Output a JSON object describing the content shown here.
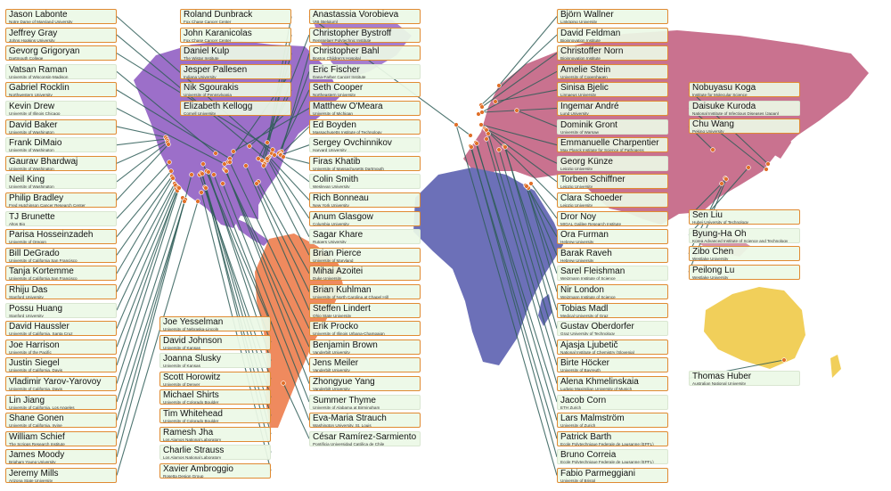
{
  "colors": {
    "north_america": "#9c6fc9",
    "south_america": "#ef8a5e",
    "europe_asia": "#c9728f",
    "africa": "#6c70b8",
    "australia": "#f1cf5a",
    "connector": "#2f5d58",
    "marker": "#e0702a",
    "box_border": "#e08a32",
    "box_fill": "#ecf8e6"
  },
  "scientists": [
    {
      "name": "Jason Labonte",
      "affiliation": "Notre Dame of Maryland University"
    },
    {
      "name": "Jeffrey Gray",
      "affiliation": "Johns Hopkins University"
    },
    {
      "name": "Gevorg Grigoryan",
      "affiliation": "Dartmouth College"
    },
    {
      "name": "Vatsan Raman",
      "affiliation": "University of Wisconsin-Madison"
    },
    {
      "name": "Gabriel Rocklin",
      "affiliation": "Northwestern University"
    },
    {
      "name": "Kevin Drew",
      "affiliation": "University of Illinois Chicago"
    },
    {
      "name": "David Baker",
      "affiliation": "University of Washington"
    },
    {
      "name": "Frank DiMaio",
      "affiliation": "University of Washington"
    },
    {
      "name": "Gaurav Bhardwaj",
      "affiliation": "University of Washington"
    },
    {
      "name": "Neil King",
      "affiliation": "University of Washington"
    },
    {
      "name": "Philip Bradley",
      "affiliation": "Fred Hutchinson Cancer Research Center"
    },
    {
      "name": "TJ Brunette",
      "affiliation": "Altos Bio"
    },
    {
      "name": "Parisa Hosseinzadeh",
      "affiliation": "University of Oregon"
    },
    {
      "name": "Bill DeGrado",
      "affiliation": "University of California San Francisco"
    },
    {
      "name": "Tanja Kortemme",
      "affiliation": "University of California San Francisco"
    },
    {
      "name": "Rhiju Das",
      "affiliation": "Stanford University"
    },
    {
      "name": "Possu Huang",
      "affiliation": "Stanford University"
    },
    {
      "name": "David Haussler",
      "affiliation": "University of California, Santa Cruz"
    },
    {
      "name": "Joe Harrison",
      "affiliation": "University of the Pacific"
    },
    {
      "name": "Justin Siegel",
      "affiliation": "University of California, Davis"
    },
    {
      "name": "Vladimir Yarov-Yarovoy",
      "affiliation": "University of California, Davis"
    },
    {
      "name": "Lin Jiang",
      "affiliation": "University of California, Los Angeles"
    },
    {
      "name": "Shane Gonen",
      "affiliation": "University of California, Irvine"
    },
    {
      "name": "William Schief",
      "affiliation": "The Scripps Research Institute"
    },
    {
      "name": "James Moody",
      "affiliation": "Brigham Young University"
    },
    {
      "name": "Jeremy Mills",
      "affiliation": "Arizona State University"
    },
    {
      "name": "Roland Dunbrack",
      "affiliation": "Fox Chase Cancer Center"
    },
    {
      "name": "John Karanicolas",
      "affiliation": "Fox Chase Cancer Center"
    },
    {
      "name": "Daniel Kulp",
      "affiliation": "The Wistar Institute"
    },
    {
      "name": "Jesper Pallesen",
      "affiliation": "Indiana University"
    },
    {
      "name": "Nik Sgourakis",
      "affiliation": "University of Pennsylvania"
    },
    {
      "name": "Elizabeth Kellogg",
      "affiliation": "Cornell University"
    },
    {
      "name": "Joe Yesselman",
      "affiliation": "University of Nebraska-Lincoln"
    },
    {
      "name": "David Johnson",
      "affiliation": "University of Kansas"
    },
    {
      "name": "Joanna Slusky",
      "affiliation": "University of Kansas"
    },
    {
      "name": "Scott Horowitz",
      "affiliation": "University of Denver"
    },
    {
      "name": "Michael Shirts",
      "affiliation": "University of Colorado Boulder"
    },
    {
      "name": "Tim Whitehead",
      "affiliation": "University of Colorado Boulder"
    },
    {
      "name": "Ramesh Jha",
      "affiliation": "Los Alamos National Laboratory"
    },
    {
      "name": "Charlie Strauss",
      "affiliation": "Los Alamos National Laboratory"
    },
    {
      "name": "Xavier Ambroggio",
      "affiliation": "Rosetta Design Group"
    },
    {
      "name": "Anastassia Vorobieva",
      "affiliation": "VIB (Belgium)"
    },
    {
      "name": "Christopher Bystroff",
      "affiliation": "Rensselaer Polytechnic Institute"
    },
    {
      "name": "Christopher Bahl",
      "affiliation": "Boston Children's Hospital"
    },
    {
      "name": "Eric Fischer",
      "affiliation": "Dana-Farber Cancer Institute"
    },
    {
      "name": "Seth Cooper",
      "affiliation": "Northeastern University"
    },
    {
      "name": "Matthew O'Meara",
      "affiliation": "University of Michigan"
    },
    {
      "name": "Ed Boyden",
      "affiliation": "Massachusetts Institute of Technology"
    },
    {
      "name": "Sergey Ovchinnikov",
      "affiliation": "Harvard University"
    },
    {
      "name": "Firas Khatib",
      "affiliation": "University of Massachusetts Dartmouth"
    },
    {
      "name": "Colin Smith",
      "affiliation": "Wesleyan University"
    },
    {
      "name": "Rich Bonneau",
      "affiliation": "New York University"
    },
    {
      "name": "Anum Glasgow",
      "affiliation": "Columbia University"
    },
    {
      "name": "Sagar Khare",
      "affiliation": "Rutgers University"
    },
    {
      "name": "Brian Pierce",
      "affiliation": "University of Maryland"
    },
    {
      "name": "Mihai Azoitei",
      "affiliation": "Duke University"
    },
    {
      "name": "Brian Kuhlman",
      "affiliation": "University of North Carolina at Chapel Hill"
    },
    {
      "name": "Steffen Lindert",
      "affiliation": "Ohio State University"
    },
    {
      "name": "Erik Procko",
      "affiliation": "University of Illinois Urbana-Champaign"
    },
    {
      "name": "Benjamin Brown",
      "affiliation": "Vanderbilt University"
    },
    {
      "name": "Jens Meiler",
      "affiliation": "Vanderbilt University"
    },
    {
      "name": "Zhongyue Yang",
      "affiliation": "Vanderbilt University"
    },
    {
      "name": "Summer Thyme",
      "affiliation": "University of Alabama at Birmingham"
    },
    {
      "name": "Eva-Maria Strauch",
      "affiliation": "Washington University, St. Louis"
    },
    {
      "name": "César Ramírez-Sarmiento",
      "affiliation": "Pontificia Universidad Católica de Chile"
    },
    {
      "name": "Björn Wallner",
      "affiliation": "Linköping University"
    },
    {
      "name": "David Feldman",
      "affiliation": "Bioinnovation Institute"
    },
    {
      "name": "Christoffer Norn",
      "affiliation": "Bioinnovation Institute"
    },
    {
      "name": "Amelie Stein",
      "affiliation": "University of Copenhagen"
    },
    {
      "name": "Sinisa Bjelic",
      "affiliation": "Linnaeus University"
    },
    {
      "name": "Ingemar André",
      "affiliation": "Lund University"
    },
    {
      "name": "Dominik Gront",
      "affiliation": "University of Warsaw"
    },
    {
      "name": "Emmanuelle Charpentier",
      "affiliation": "Max Planck Institute for Science of Pathogens"
    },
    {
      "name": "Georg Künze",
      "affiliation": "Leipzig University"
    },
    {
      "name": "Torben Schiffner",
      "affiliation": "Leipzig University"
    },
    {
      "name": "Clara Schoeder",
      "affiliation": "Leipzig University"
    },
    {
      "name": "Dror Noy",
      "affiliation": "MIGAL Galilee Research Institute"
    },
    {
      "name": "Ora Furman",
      "affiliation": "Hebrew University"
    },
    {
      "name": "Barak Raveh",
      "affiliation": "Hebrew University"
    },
    {
      "name": "Sarel Fleishman",
      "affiliation": "Weizmann Institute of Science"
    },
    {
      "name": "Nir London",
      "affiliation": "Weizmann Institute of Science"
    },
    {
      "name": "Tobias Madl",
      "affiliation": "Medical University of Graz"
    },
    {
      "name": "Gustav Oberdorfer",
      "affiliation": "Graz University of Technology"
    },
    {
      "name": "Ajasja Ljubetič",
      "affiliation": "National Institute of Chemistry (Slovenia)"
    },
    {
      "name": "Birte Höcker",
      "affiliation": "University of Bayreuth"
    },
    {
      "name": "Alena Khmelinskaia",
      "affiliation": "Ludwig Maximilian University of Munich"
    },
    {
      "name": "Jacob Corn",
      "affiliation": "ETH Zurich"
    },
    {
      "name": "Lars Malmström",
      "affiliation": "University of Zurich"
    },
    {
      "name": "Patrick Barth",
      "affiliation": "Ecole Polytechnique Federale de Lausanne (EPFL)"
    },
    {
      "name": "Bruno Correia",
      "affiliation": "Ecole Polytechnique Federale de Lausanne (EPFL)"
    },
    {
      "name": "Fabio Parmeggiani",
      "affiliation": "University of Bristol"
    },
    {
      "name": "Nobuyasu Koga",
      "affiliation": "Institute for Molecular Science"
    },
    {
      "name": "Daisuke Kuroda",
      "affiliation": "National Institute of Infectious Diseases (Japan)"
    },
    {
      "name": "Chu Wang",
      "affiliation": "Peking University"
    },
    {
      "name": "Sen Liu",
      "affiliation": "Hubei University of Technology"
    },
    {
      "name": "Byung-Ha Oh",
      "affiliation": "Korea Advanced Institute of Science and Technology"
    },
    {
      "name": "Zibo Chen",
      "affiliation": "Westlake University"
    },
    {
      "name": "Peilong Lu",
      "affiliation": "Westlake University"
    },
    {
      "name": "Thomas Huber",
      "affiliation": "Australian National University"
    }
  ]
}
